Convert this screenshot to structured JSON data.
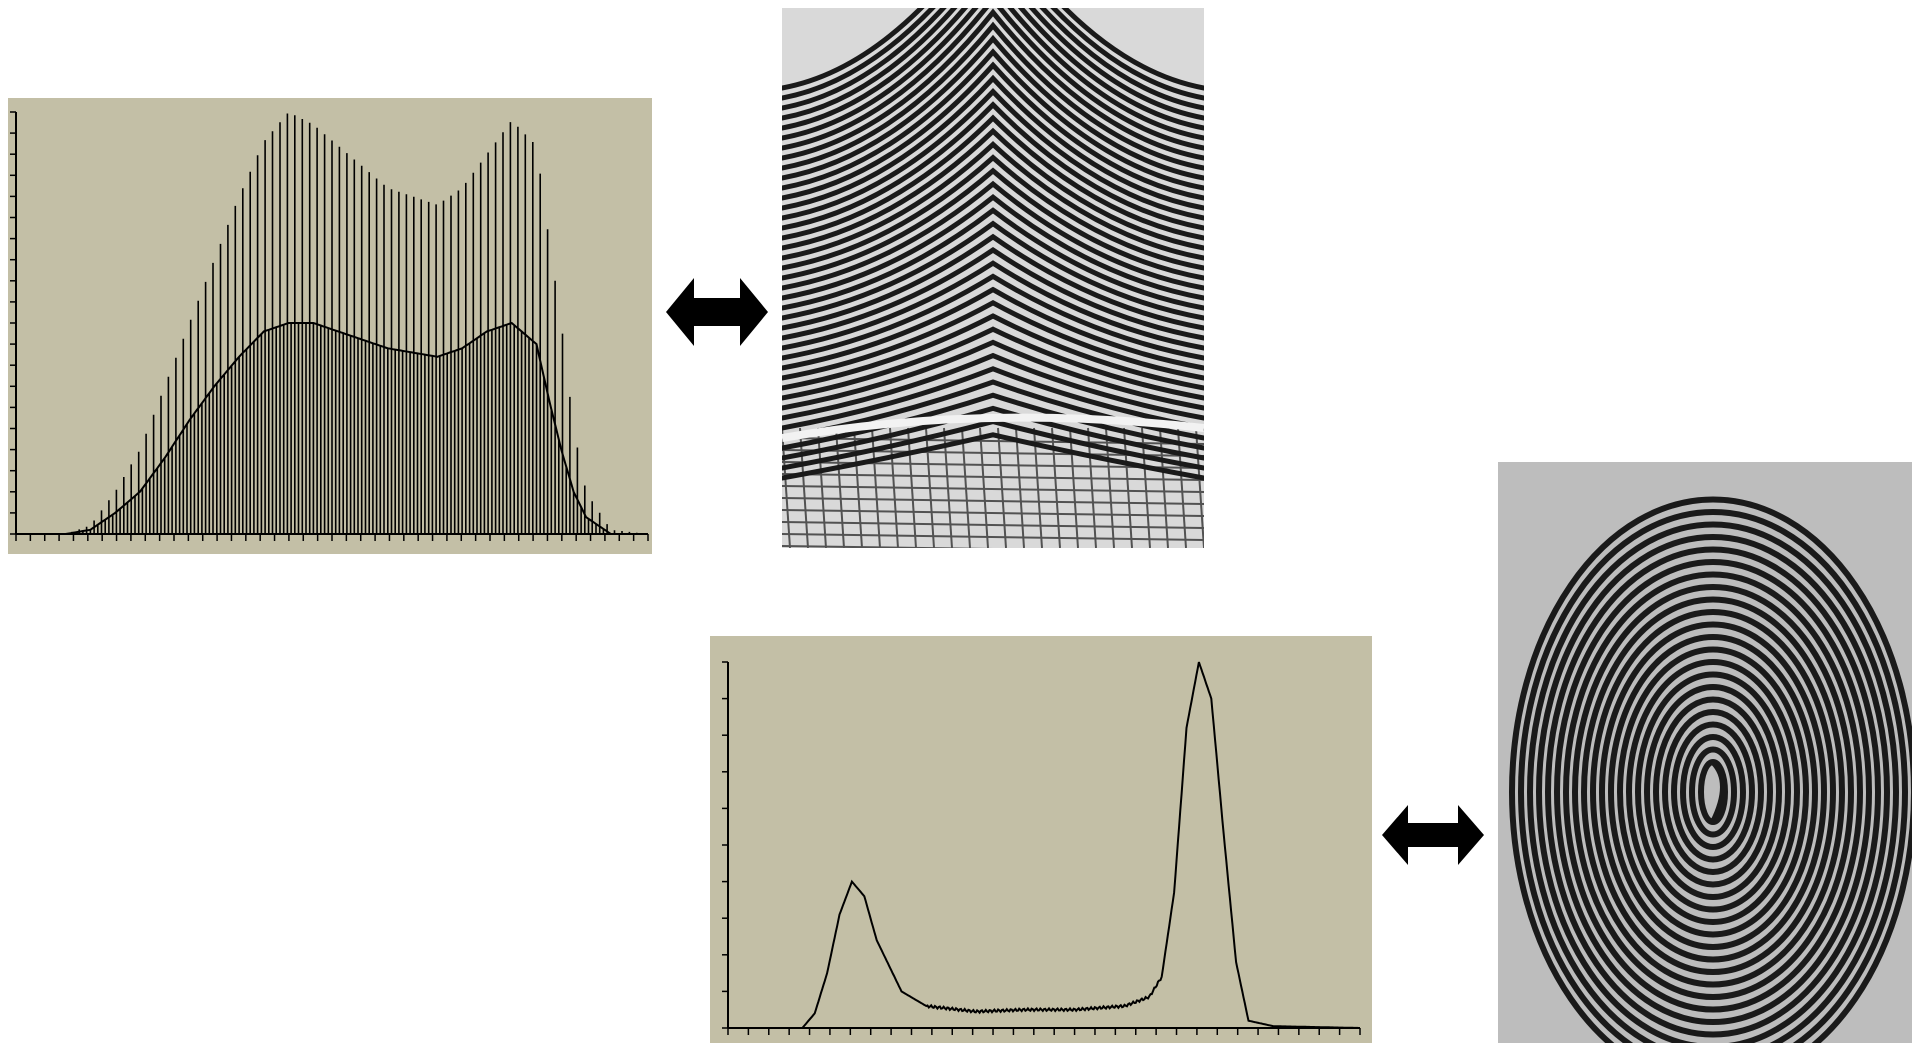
{
  "colors": {
    "page_background": "#ffffff",
    "histogram_background": "#c3bfa6",
    "histogram_ink": "#000000",
    "arrow": "#000000",
    "latent_print_paper": "#d9d9d9",
    "inked_print_paper": "#bdbdbd",
    "ridge_ink": "#1a1a1a"
  },
  "icons": {
    "top_arrow": "double-headed-arrow",
    "bottom_arrow": "double-headed-arrow"
  },
  "chart_data": [
    {
      "type": "bar",
      "pair": "top",
      "xlabel": "",
      "ylabel": "",
      "grid": false,
      "legend": "none",
      "x_tick_count": 45,
      "y_tick_count": 21,
      "xlim": [
        0,
        255
      ],
      "ylim": [
        0,
        100
      ],
      "description_of_shape": "comb-like histogram: alternating tall and short bars; envelope rises from ~20, peaks near 100 around 105, dips to ~78 near 170, second peak ~98 near 200, falls to 0 by ~245",
      "envelope_x": [
        0,
        20,
        30,
        40,
        50,
        60,
        70,
        80,
        90,
        100,
        110,
        120,
        130,
        140,
        150,
        160,
        170,
        180,
        190,
        200,
        210,
        215,
        220,
        225,
        230,
        240,
        255
      ],
      "envelope_high": [
        0,
        0,
        2,
        10,
        20,
        35,
        50,
        65,
        80,
        93,
        100,
        97,
        92,
        87,
        82,
        80,
        78,
        82,
        90,
        98,
        92,
        70,
        50,
        25,
        10,
        1,
        0
      ],
      "envelope_low": [
        0,
        0,
        1,
        5,
        10,
        18,
        27,
        35,
        42,
        48,
        50,
        50,
        48,
        46,
        44,
        43,
        42,
        44,
        48,
        50,
        45,
        32,
        20,
        10,
        4,
        0,
        0
      ]
    },
    {
      "type": "line",
      "pair": "bottom",
      "xlabel": "",
      "ylabel": "",
      "grid": false,
      "legend": "none",
      "x_tick_count": 32,
      "y_tick_count": 11,
      "xlim": [
        0,
        255
      ],
      "ylim": [
        0,
        100
      ],
      "x": [
        0,
        20,
        30,
        35,
        40,
        45,
        50,
        55,
        60,
        70,
        80,
        100,
        120,
        140,
        150,
        160,
        170,
        175,
        180,
        185,
        190,
        195,
        200,
        205,
        210,
        220,
        255
      ],
      "values": [
        0,
        0,
        0,
        4,
        15,
        31,
        40,
        36,
        24,
        10,
        6,
        4.5,
        5,
        5,
        5.5,
        6,
        8.5,
        14,
        37,
        82,
        100,
        90,
        53,
        18,
        2,
        0.5,
        0
      ]
    }
  ]
}
